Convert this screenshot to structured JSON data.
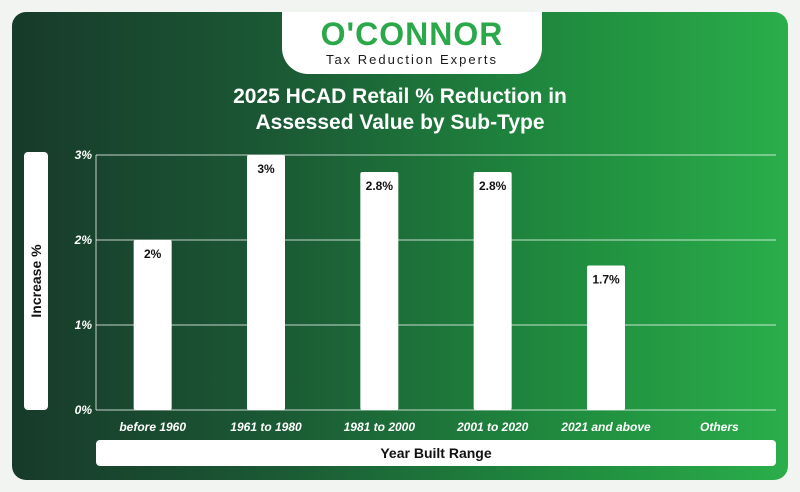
{
  "logo": {
    "name": "O'CONNOR",
    "tagline": "Tax Reduction Experts"
  },
  "chart_data": {
    "type": "bar",
    "title_line1": "2025 HCAD Retail % Reduction in",
    "title_line2": "Assessed Value by Sub-Type",
    "xlabel": "Year Built Range",
    "ylabel": "Increase %",
    "categories": [
      "before 1960",
      "1961 to 1980",
      "1981 to 2000",
      "2001 to 2020",
      "2021 and above",
      "Others"
    ],
    "values": [
      2,
      3,
      2.8,
      2.8,
      1.7,
      null
    ],
    "data_labels": [
      "2%",
      "3%",
      "2.8%",
      "2.8%",
      "1.7%",
      ""
    ],
    "yticks": [
      0,
      1,
      2,
      3
    ],
    "ytick_labels": [
      "0%",
      "1%",
      "2%",
      "3%"
    ],
    "ylim": [
      0,
      3
    ],
    "grid": true,
    "colors": {
      "bar": "#ffffff",
      "grid": "#ffffff",
      "text": "#111111"
    }
  }
}
